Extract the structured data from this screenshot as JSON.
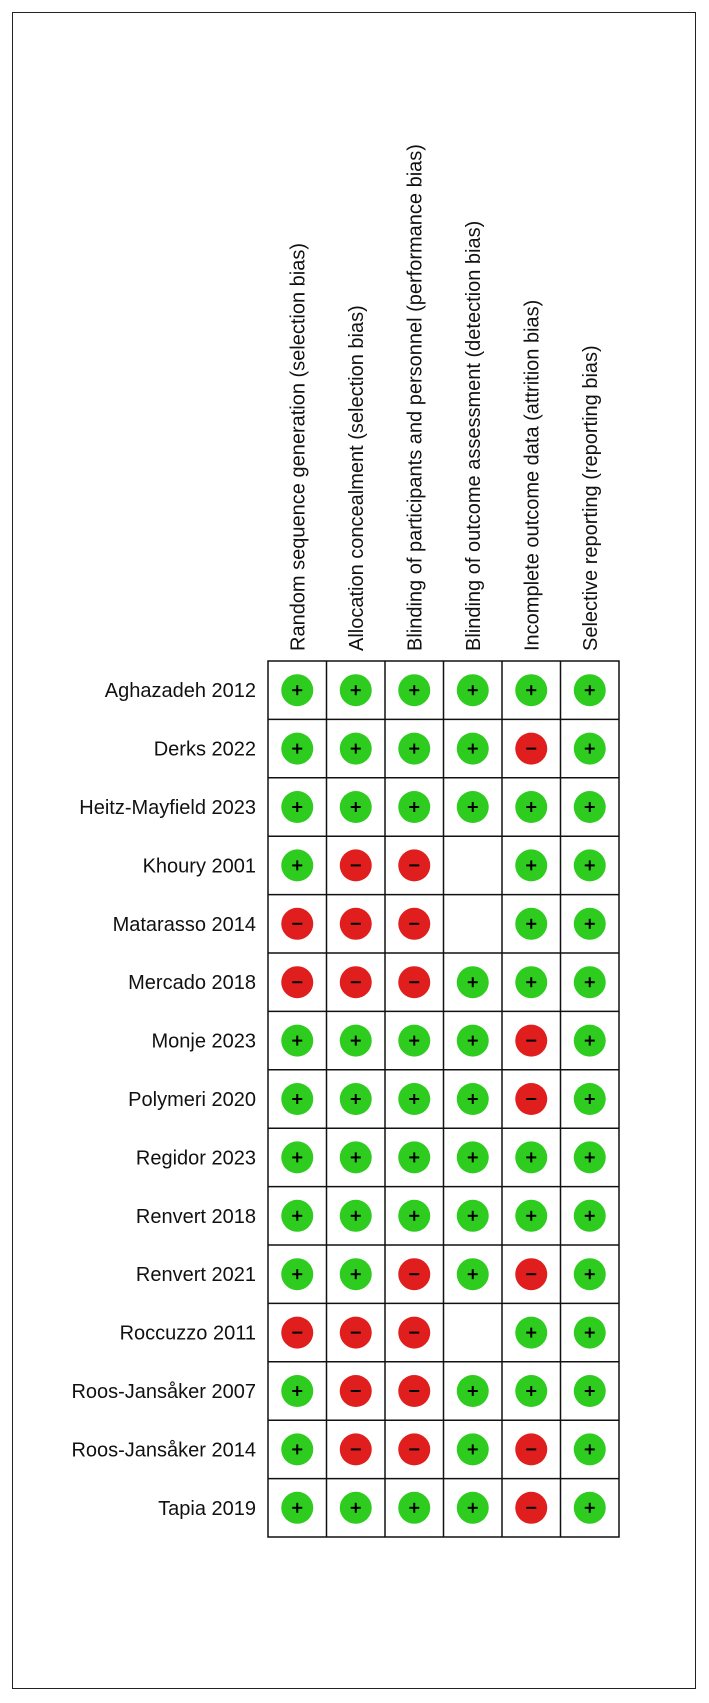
{
  "chart_data": {
    "type": "table",
    "columns": [
      "Random sequence generation (selection bias)",
      "Allocation concealment (selection bias)",
      "Blinding of participants and personnel (performance bias)",
      "Blinding of outcome assessment (detection bias)",
      "Incomplete outcome data (attrition bias)",
      "Selective reporting (reporting bias)"
    ],
    "rows": [
      {
        "study": "Aghazadeh 2012",
        "ratings": [
          "+",
          "+",
          "+",
          "+",
          "+",
          "+"
        ]
      },
      {
        "study": "Derks 2022",
        "ratings": [
          "+",
          "+",
          "+",
          "+",
          "-",
          "+"
        ]
      },
      {
        "study": "Heitz-Mayfield 2023",
        "ratings": [
          "+",
          "+",
          "+",
          "+",
          "+",
          "+"
        ]
      },
      {
        "study": "Khoury 2001",
        "ratings": [
          "+",
          "-",
          "-",
          "",
          "+",
          "+"
        ]
      },
      {
        "study": "Matarasso 2014",
        "ratings": [
          "-",
          "-",
          "-",
          "",
          "+",
          "+"
        ]
      },
      {
        "study": "Mercado 2018",
        "ratings": [
          "-",
          "-",
          "-",
          "+",
          "+",
          "+"
        ]
      },
      {
        "study": "Monje 2023",
        "ratings": [
          "+",
          "+",
          "+",
          "+",
          "-",
          "+"
        ]
      },
      {
        "study": "Polymeri 2020",
        "ratings": [
          "+",
          "+",
          "+",
          "+",
          "-",
          "+"
        ]
      },
      {
        "study": "Regidor 2023",
        "ratings": [
          "+",
          "+",
          "+",
          "+",
          "+",
          "+"
        ]
      },
      {
        "study": "Renvert 2018",
        "ratings": [
          "+",
          "+",
          "+",
          "+",
          "+",
          "+"
        ]
      },
      {
        "study": "Renvert 2021",
        "ratings": [
          "+",
          "+",
          "-",
          "+",
          "-",
          "+"
        ]
      },
      {
        "study": "Roccuzzo 2011",
        "ratings": [
          "-",
          "-",
          "-",
          "",
          "+",
          "+"
        ]
      },
      {
        "study": "Roos-Jansåker 2007",
        "ratings": [
          "+",
          "-",
          "-",
          "+",
          "+",
          "+"
        ]
      },
      {
        "study": "Roos-Jansåker 2014",
        "ratings": [
          "+",
          "-",
          "-",
          "+",
          "-",
          "+"
        ]
      },
      {
        "study": "Tapia 2019",
        "ratings": [
          "+",
          "+",
          "+",
          "+",
          "-",
          "+"
        ]
      }
    ],
    "colors": {
      "low_risk": "#2ecc1f",
      "high_risk": "#e01e1e",
      "grid": "#111111",
      "symbol": "#000000"
    }
  }
}
